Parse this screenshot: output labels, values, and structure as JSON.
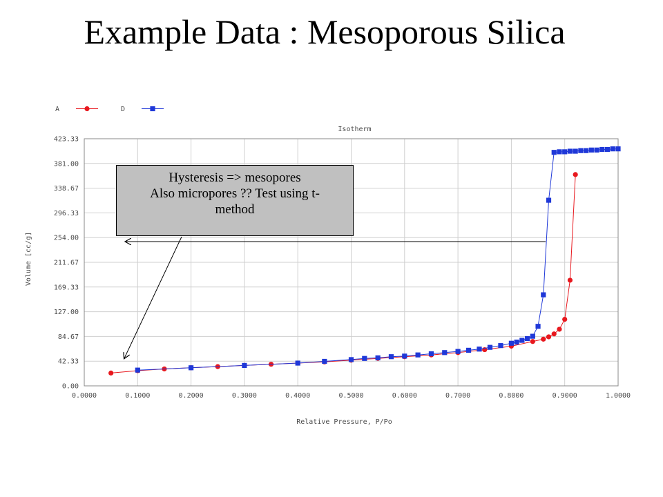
{
  "slide": {
    "title": "Example Data : Mesoporous Silica"
  },
  "callout": {
    "lines": [
      "Hysteresis => mesopores",
      "Also micropores ?? Test using t-",
      "method"
    ]
  },
  "chart_data": {
    "type": "scatter",
    "title": "Isotherm",
    "xlabel": "Relative Pressure, P/Po",
    "ylabel": "Volume [cc/g]",
    "xlim": [
      0.0,
      1.0
    ],
    "ylim": [
      0.0,
      423.33
    ],
    "x_ticks": [
      "0.0000",
      "0.1000",
      "0.2000",
      "0.3000",
      "0.4000",
      "0.5000",
      "0.6000",
      "0.7000",
      "0.8000",
      "0.9000",
      "1.0000"
    ],
    "y_ticks": [
      "0.00",
      "42.33",
      "84.67",
      "127.00",
      "169.33",
      "211.67",
      "254.00",
      "296.33",
      "338.67",
      "381.00",
      "423.33"
    ],
    "grid": true,
    "legend_position": "top-left",
    "series": [
      {
        "name": "A",
        "color": "#e8181e",
        "marker": "circle",
        "x": [
          0.05,
          0.1,
          0.15,
          0.2,
          0.25,
          0.3,
          0.35,
          0.4,
          0.45,
          0.5,
          0.55,
          0.6,
          0.65,
          0.7,
          0.75,
          0.8,
          0.84,
          0.86,
          0.87,
          0.88,
          0.89,
          0.9,
          0.91,
          0.92
        ],
        "y": [
          22,
          26,
          29,
          31,
          33,
          35,
          37,
          39,
          41,
          44,
          47,
          50,
          53,
          57,
          62,
          68,
          76,
          80,
          84,
          89,
          97,
          114,
          181,
          362
        ]
      },
      {
        "name": "D",
        "color": "#1f38d8",
        "marker": "square",
        "x": [
          0.1,
          0.2,
          0.3,
          0.4,
          0.45,
          0.5,
          0.525,
          0.55,
          0.575,
          0.6,
          0.625,
          0.65,
          0.675,
          0.7,
          0.72,
          0.74,
          0.76,
          0.78,
          0.8,
          0.81,
          0.82,
          0.83,
          0.84,
          0.85,
          0.86,
          0.87,
          0.88,
          0.89,
          0.9,
          0.91,
          0.92,
          0.93,
          0.94,
          0.95,
          0.96,
          0.97,
          0.98,
          0.99,
          1.0
        ],
        "y": [
          27,
          31,
          35,
          39,
          42,
          45,
          47,
          48,
          50,
          51,
          53,
          55,
          57,
          59,
          61,
          63,
          66,
          69,
          73,
          75,
          78,
          81,
          85,
          102,
          156,
          318,
          400,
          401,
          401,
          402,
          402,
          403,
          403,
          404,
          404,
          405,
          405,
          406,
          406
        ]
      }
    ]
  }
}
